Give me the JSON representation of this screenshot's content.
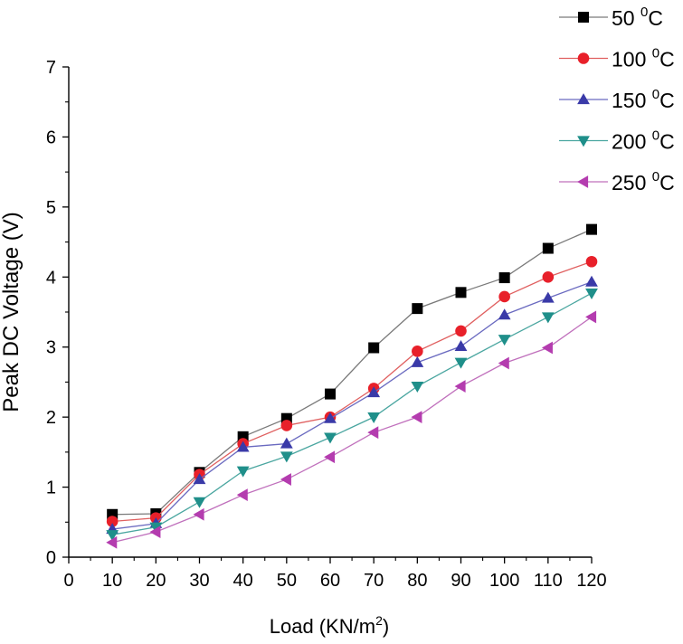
{
  "chart_data": {
    "type": "line",
    "title": "",
    "xlabel": "Load (KN/m",
    "xlabel_sup": "2",
    "xlabel_tail": ")",
    "ylabel": "Peak DC Voltage (V)",
    "xlim": [
      0,
      120
    ],
    "ylim": [
      0,
      7
    ],
    "xticks": [
      0,
      10,
      20,
      30,
      40,
      50,
      60,
      70,
      80,
      90,
      100,
      110,
      120
    ],
    "yticks": [
      0,
      1,
      2,
      3,
      4,
      5,
      6,
      7
    ],
    "x": [
      10,
      20,
      30,
      40,
      50,
      60,
      70,
      80,
      90,
      100,
      110,
      120
    ],
    "legend_position": "top-right",
    "grid": false,
    "series": [
      {
        "name": "50 ",
        "sup": "0",
        "unit": "C",
        "marker": "square",
        "color": "#000000",
        "line_color": "#7a7a7a",
        "values": [
          0.61,
          0.62,
          1.21,
          1.72,
          1.98,
          2.33,
          2.99,
          3.55,
          3.78,
          3.99,
          4.41,
          4.68
        ]
      },
      {
        "name": "100 ",
        "sup": "0",
        "unit": "C",
        "marker": "circle",
        "color": "#e8202a",
        "line_color": "#e06060",
        "values": [
          0.51,
          0.56,
          1.18,
          1.62,
          1.88,
          2.0,
          2.41,
          2.94,
          3.23,
          3.72,
          4.0,
          4.22
        ]
      },
      {
        "name": "150 ",
        "sup": "0",
        "unit": "C",
        "marker": "triangle-up",
        "color": "#3a3aa8",
        "line_color": "#6a6ac0",
        "values": [
          0.4,
          0.48,
          1.11,
          1.57,
          1.62,
          1.98,
          2.35,
          2.78,
          3.01,
          3.46,
          3.7,
          3.93
        ]
      },
      {
        "name": "200 ",
        "sup": "0",
        "unit": "C",
        "marker": "triangle-down",
        "color": "#1f8f8a",
        "line_color": "#4aa6a0",
        "values": [
          0.32,
          0.43,
          0.79,
          1.23,
          1.44,
          1.71,
          2.0,
          2.44,
          2.78,
          3.11,
          3.43,
          3.77
        ]
      },
      {
        "name": "250 ",
        "sup": "0",
        "unit": "C",
        "marker": "triangle-left",
        "color": "#b43caf",
        "line_color": "#c070bc",
        "values": [
          0.21,
          0.36,
          0.61,
          0.89,
          1.11,
          1.43,
          1.78,
          2.0,
          2.44,
          2.77,
          2.99,
          3.43
        ]
      }
    ]
  }
}
